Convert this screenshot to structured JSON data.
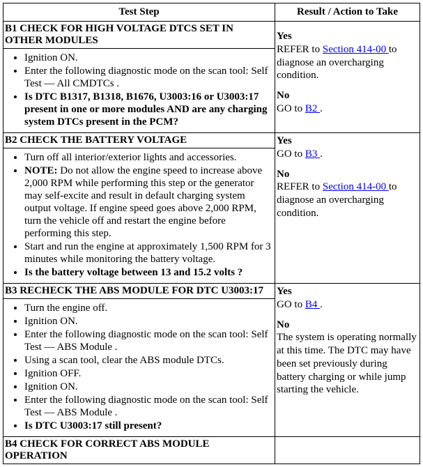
{
  "header": {
    "left": "Test Step",
    "right": "Result / Action to Take"
  },
  "b1": {
    "title": "B1 CHECK FOR HIGH VOLTAGE DTCS SET IN OTHER MODULES",
    "item1": "Ignition ON.",
    "item2": "Enter the following diagnostic mode on the scan tool: Self Test — All CMDTCs .",
    "item3": "Is DTC B1317, B1318, B1676, U3003:16 or U3003:17 present in one or more modules AND are any charging system DTCs present in the PCM?",
    "yes": "Yes",
    "yes_pre": "REFER to ",
    "yes_link": "Section 414-00 ",
    "yes_post": "to diagnose an overcharging condition.",
    "no": "No",
    "no_pre": "GO to ",
    "no_link": "B2 ",
    "no_post": "."
  },
  "b2": {
    "title": "B2 CHECK THE BATTERY VOLTAGE",
    "item1": "Turn off all interior/exterior lights and accessories.",
    "item2_label": "NOTE:",
    "item2_body": " Do not allow the engine speed to increase above 2,000 RPM while performing this step or the generator may self-excite and result in default charging system output voltage. If engine speed goes above 2,000 RPM, turn the vehicle off and restart the engine before performing this step.",
    "item3": "Start and run the engine at approximately 1,500 RPM for 3 minutes while monitoring the battery voltage.",
    "item4": "Is the battery voltage between 13 and 15.2 volts ?",
    "yes": "Yes",
    "yes_pre": "GO to ",
    "yes_link": "B3 ",
    "yes_post": ".",
    "no": "No",
    "no_pre": "REFER to ",
    "no_link": "Section 414-00 ",
    "no_post": "to diagnose an overcharging condition."
  },
  "b3": {
    "title": "B3 RECHECK THE ABS MODULE FOR DTC U3003:17",
    "item1": "Turn the engine off.",
    "item2": "Ignition ON.",
    "item3": "Enter the following diagnostic mode on the scan tool: Self Test — ABS Module .",
    "item4": "Using a scan tool, clear the ABS module DTCs.",
    "item5": "Ignition OFF.",
    "item6": "Ignition ON.",
    "item7": "Enter the following diagnostic mode on the scan tool: Self Test — ABS Module .",
    "item8": "Is DTC U3003:17 still present?",
    "yes": "Yes",
    "yes_pre": "GO to ",
    "yes_link": "B4 ",
    "yes_post": ".",
    "no": "No",
    "no_body": "The system is operating normally at this time. The DTC may have been set previously during battery charging or while jump starting the vehicle."
  },
  "b4": {
    "title": "B4 CHECK FOR CORRECT ABS MODULE OPERATION"
  }
}
